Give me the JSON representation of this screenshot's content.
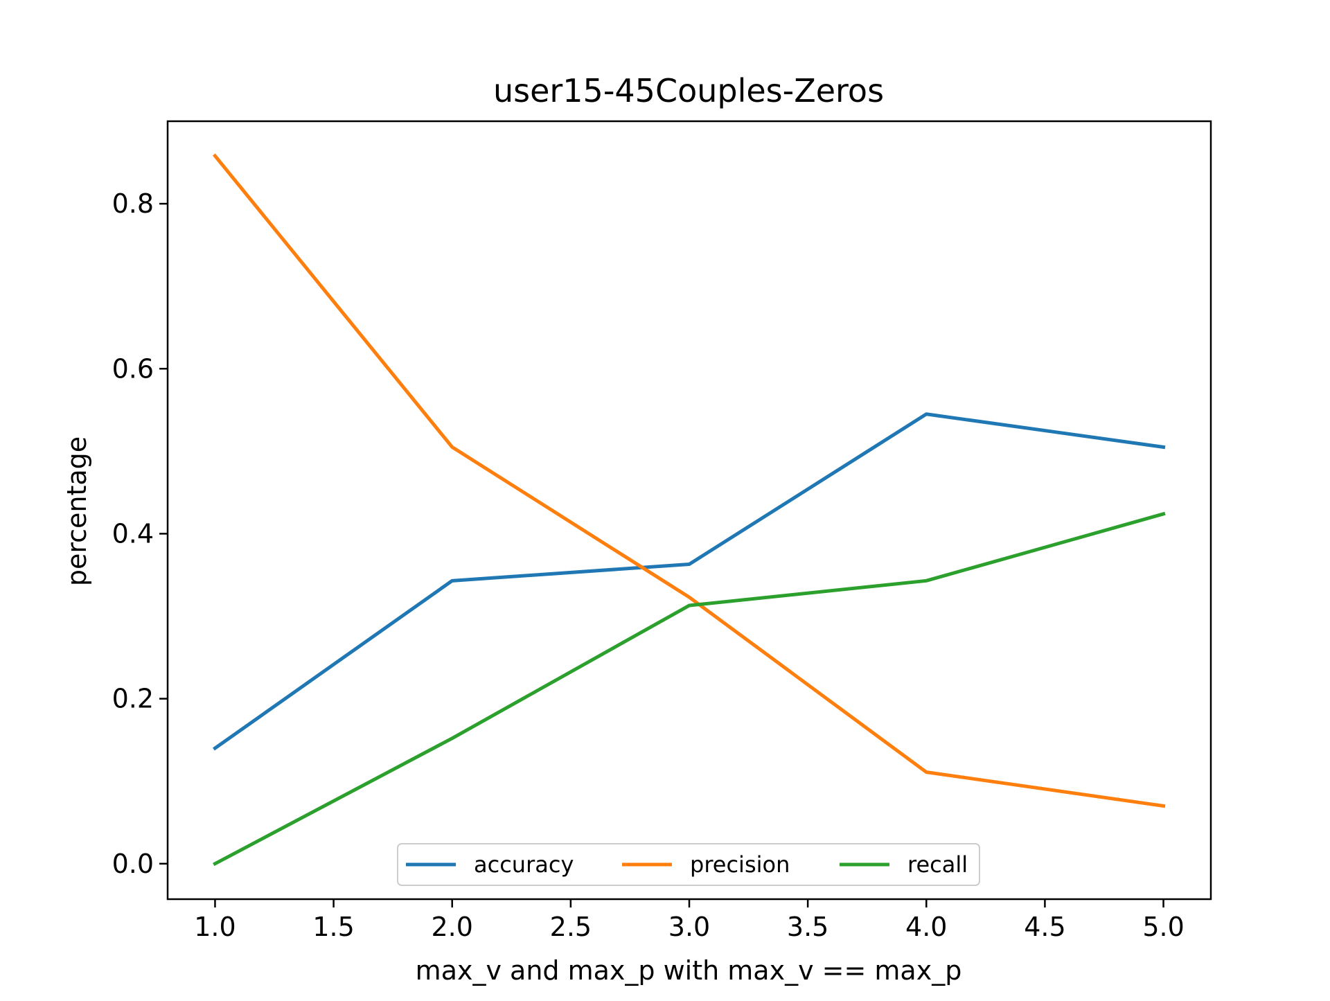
{
  "chart_data": {
    "type": "line",
    "title": "user15-45Couples-Zeros",
    "xlabel": "max_v and max_p with max_v == max_p",
    "ylabel": "percentage",
    "x": [
      1.0,
      2.0,
      3.0,
      4.0,
      5.0
    ],
    "xlim": [
      0.8,
      5.2
    ],
    "ylim": [
      -0.043,
      0.9
    ],
    "xticks": [
      "1.0",
      "1.5",
      "2.0",
      "2.5",
      "3.0",
      "3.5",
      "4.0",
      "4.5",
      "5.0"
    ],
    "yticks": [
      "0.0",
      "0.2",
      "0.4",
      "0.6",
      "0.8"
    ],
    "grid": false,
    "legend_position": "lower-center",
    "series": [
      {
        "name": "accuracy",
        "color": "#1f77b4",
        "values": [
          0.14,
          0.343,
          0.363,
          0.545,
          0.505
        ]
      },
      {
        "name": "precision",
        "color": "#ff7f0e",
        "values": [
          0.858,
          0.505,
          0.323,
          0.111,
          0.07
        ]
      },
      {
        "name": "recall",
        "color": "#2ca02c",
        "values": [
          0.0,
          0.152,
          0.313,
          0.343,
          0.424
        ]
      }
    ]
  }
}
